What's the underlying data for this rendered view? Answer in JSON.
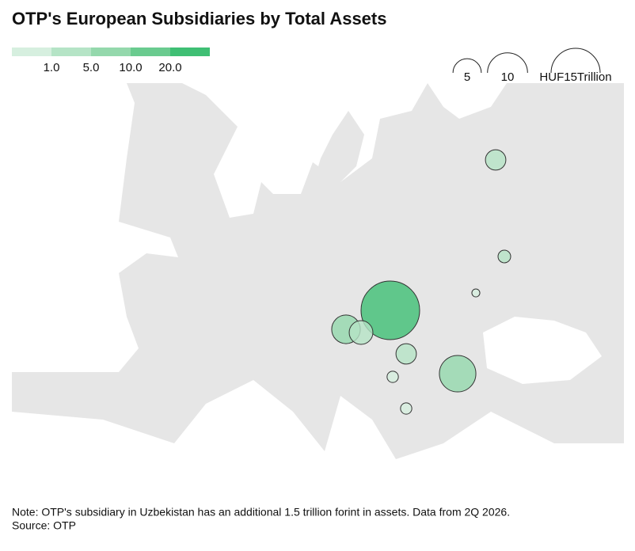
{
  "title": "OTP's European Subsidiaries by Total Assets",
  "color_legend": {
    "thresholds": [
      {
        "value": 1,
        "label": "1.0"
      },
      {
        "value": 5,
        "label": "5.0"
      },
      {
        "value": 10,
        "label": "10.0"
      },
      {
        "value": 20,
        "label": "20.0"
      }
    ],
    "colors": [
      "#d6efdf",
      "#b5e4c6",
      "#94d8ac",
      "#6acb8f",
      "#3fbf74"
    ]
  },
  "size_legend": [
    5,
    10,
    {
      "value": 15,
      "label": "HUF15Trillion"
    }
  ],
  "bubbles": {
    "values": [
      21.4,
      8.3,
      5.1,
      3.5,
      2.6,
      2.6,
      1.0,
      0.4,
      0.8,
      0.8
    ]
  },
  "note": "Note: OTP's subsidiary in Uzbekistan has an additional 1.5 trillion forint in assets. Data from 2Q 2026.",
  "source": "Source: OTP"
}
